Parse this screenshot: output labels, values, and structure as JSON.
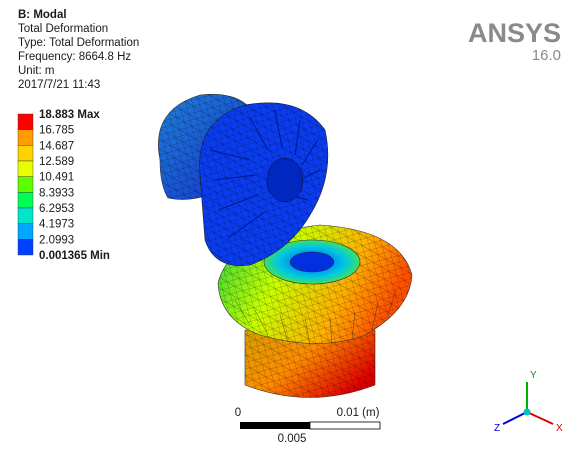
{
  "header": {
    "title": "B: Modal",
    "lines": [
      "Total Deformation",
      "Type: Total Deformation",
      "Frequency: 8664.8 Hz",
      "Unit: m",
      "2017/7/21 11:43"
    ]
  },
  "legend": {
    "labels": [
      "18.883 Max",
      "16.785",
      "14.687",
      "12.589",
      "10.491",
      "8.3933",
      "6.2953",
      "4.1973",
      "2.0993",
      "0.001365 Min"
    ],
    "colors": [
      "#ff0000",
      "#ff9c00",
      "#ffd200",
      "#e6ff00",
      "#5cff00",
      "#00ff54",
      "#00e6c8",
      "#00a8ff",
      "#0040ff"
    ]
  },
  "logo": {
    "name": "ANSYS",
    "version": "16.0"
  },
  "scale_bar": {
    "start": "0",
    "end": "0.01 (m)",
    "middle": "0.005"
  },
  "triad": {
    "y": "Y",
    "x": "X",
    "z": "Z"
  }
}
